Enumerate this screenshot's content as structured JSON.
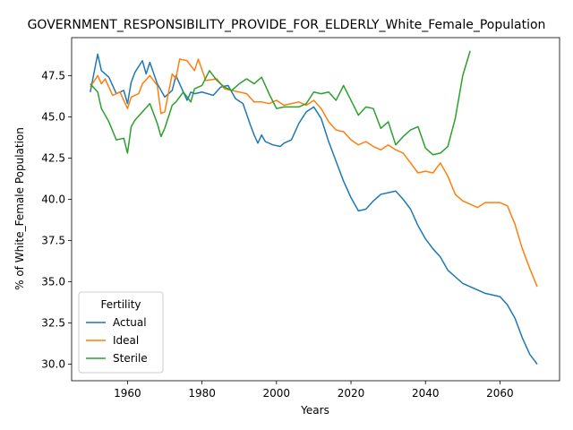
{
  "chart_data": {
    "type": "line",
    "title": "GOVERNMENT_RESPONSIBILITY_PROVIDE_FOR_ELDERLY_White_Female_Population",
    "xlabel": "Years",
    "ylabel": "% of White_Female Population",
    "xlim": [
      1945,
      2076
    ],
    "ylim": [
      29.0,
      49.8
    ],
    "xticks": [
      1960,
      1980,
      2000,
      2020,
      2040,
      2060
    ],
    "yticks": [
      30.0,
      32.5,
      35.0,
      37.5,
      40.0,
      42.5,
      45.0,
      47.5
    ],
    "grid": false,
    "legend": {
      "title": "Fertility",
      "position": "lower-left"
    },
    "series": [
      {
        "name": "Actual",
        "color": "#1f77b4",
        "x": [
          1950,
          1952,
          1953,
          1955,
          1957,
          1959,
          1960,
          1961,
          1962,
          1964,
          1965,
          1966,
          1968,
          1970,
          1972,
          1973,
          1975,
          1976,
          1977,
          1978,
          1980,
          1983,
          1985,
          1987,
          1989,
          1991,
          1993,
          1994,
          1995,
          1996,
          1997,
          1999,
          2001,
          2002,
          2004,
          2006,
          2008,
          2010,
          2012,
          2014,
          2016,
          2018,
          2020,
          2022,
          2024,
          2026,
          2028,
          2030,
          2032,
          2034,
          2036,
          2038,
          2040,
          2042,
          2044,
          2046,
          2048,
          2050,
          2052,
          2054,
          2056,
          2058,
          2060,
          2062,
          2064,
          2066,
          2068,
          2070
        ],
        "values": [
          46.5,
          48.8,
          47.8,
          47.4,
          46.4,
          46.6,
          45.8,
          47.1,
          47.7,
          48.4,
          47.6,
          48.3,
          47.0,
          46.2,
          46.6,
          47.5,
          46.5,
          46.0,
          46.5,
          46.4,
          46.5,
          46.3,
          46.8,
          46.9,
          46.1,
          45.8,
          44.5,
          43.9,
          43.4,
          43.9,
          43.5,
          43.3,
          43.2,
          43.4,
          43.6,
          44.6,
          45.3,
          45.6,
          44.9,
          43.5,
          42.3,
          41.1,
          40.1,
          39.3,
          39.4,
          39.9,
          40.3,
          40.4,
          40.5,
          40.0,
          39.4,
          38.4,
          37.6,
          37.0,
          36.5,
          35.7,
          35.3,
          34.9,
          34.7,
          34.5,
          34.3,
          34.2,
          34.1,
          33.6,
          32.8,
          31.6,
          30.6,
          30.0
        ]
      },
      {
        "name": "Ideal",
        "color": "#ff7f0e",
        "x": [
          1950,
          1952,
          1953,
          1954,
          1956,
          1958,
          1960,
          1961,
          1963,
          1964,
          1966,
          1968,
          1969,
          1970,
          1972,
          1973,
          1974,
          1976,
          1978,
          1979,
          1981,
          1984,
          1986,
          1988,
          1990,
          1992,
          1994,
          1996,
          1998,
          2000,
          2002,
          2004,
          2006,
          2008,
          2010,
          2012,
          2014,
          2016,
          2018,
          2020,
          2022,
          2024,
          2026,
          2028,
          2030,
          2032,
          2034,
          2036,
          2038,
          2040,
          2042,
          2044,
          2046,
          2048,
          2050,
          2052,
          2054,
          2056,
          2058,
          2060,
          2062,
          2064,
          2066,
          2068,
          2070
        ],
        "values": [
          46.8,
          47.5,
          47.0,
          47.3,
          46.3,
          46.5,
          45.5,
          46.2,
          46.4,
          47.0,
          47.5,
          46.9,
          45.2,
          45.3,
          47.6,
          47.3,
          48.5,
          48.4,
          47.8,
          48.5,
          47.2,
          47.3,
          46.7,
          46.6,
          46.5,
          46.4,
          45.9,
          45.9,
          45.8,
          46.0,
          45.7,
          45.8,
          45.9,
          45.7,
          46.0,
          45.5,
          44.7,
          44.2,
          44.1,
          43.6,
          43.3,
          43.5,
          43.2,
          43.0,
          43.3,
          43.0,
          42.8,
          42.2,
          41.6,
          41.7,
          41.6,
          42.2,
          41.4,
          40.3,
          39.9,
          39.7,
          39.5,
          39.8,
          39.8,
          39.8,
          39.6,
          38.5,
          37.0,
          35.8,
          34.7
        ]
      },
      {
        "name": "Sterile",
        "color": "#2ca02c",
        "x": [
          1950,
          1952,
          1953,
          1955,
          1957,
          1959,
          1960,
          1961,
          1962,
          1964,
          1966,
          1968,
          1969,
          1970,
          1972,
          1973,
          1975,
          1976,
          1977,
          1978,
          1980,
          1982,
          1984,
          1986,
          1988,
          1990,
          1992,
          1994,
          1996,
          1998,
          2000,
          2002,
          2004,
          2006,
          2008,
          2010,
          2012,
          2014,
          2016,
          2018,
          2020,
          2022,
          2024,
          2026,
          2028,
          2030,
          2032,
          2034,
          2036,
          2038,
          2040,
          2042,
          2044,
          2046,
          2048,
          2050,
          2052
        ],
        "values": [
          47.0,
          46.5,
          45.5,
          44.7,
          43.6,
          43.7,
          42.8,
          44.4,
          44.8,
          45.3,
          45.8,
          44.6,
          43.8,
          44.3,
          45.7,
          45.9,
          46.5,
          46.2,
          45.9,
          46.7,
          46.9,
          47.8,
          47.2,
          46.8,
          46.6,
          47.0,
          47.3,
          47.0,
          47.4,
          46.4,
          45.5,
          45.6,
          45.6,
          45.6,
          45.8,
          46.5,
          46.4,
          46.5,
          46.0,
          46.9,
          46.0,
          45.1,
          45.6,
          45.5,
          44.3,
          44.7,
          43.3,
          43.8,
          44.2,
          44.4,
          43.1,
          42.7,
          42.8,
          43.2,
          44.9,
          47.5,
          49.0
        ]
      }
    ]
  }
}
